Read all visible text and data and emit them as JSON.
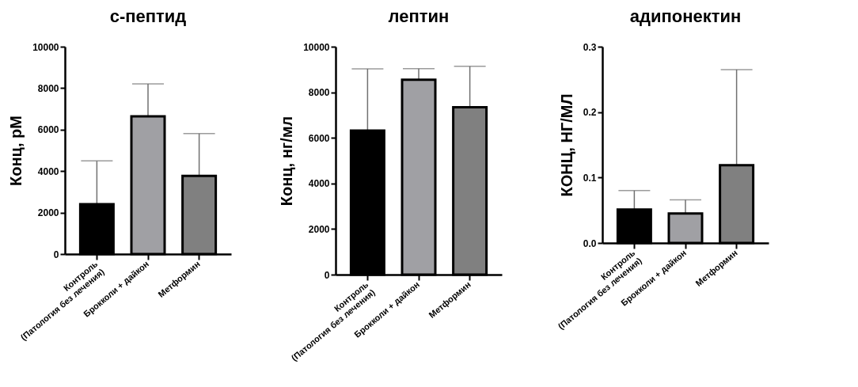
{
  "chart_data": [
    {
      "type": "bar",
      "title": "с-пептид",
      "ylabel": "Конц, рМ",
      "categories": [
        "Контроль\n(Патология без лечения)",
        "Брокколи + дайкон",
        "Метформин"
      ],
      "values": [
        2400,
        6640,
        3770
      ],
      "errors": [
        [
          2400,
          4490
        ],
        [
          6640,
          8210
        ],
        [
          3770,
          5810
        ]
      ],
      "colors": [
        "#000000",
        "#a0a0a4",
        "#808080"
      ],
      "ylim": [
        0,
        10000
      ],
      "yticks": [
        0,
        2000,
        4000,
        6000,
        8000,
        10000
      ],
      "grid": false
    },
    {
      "type": "bar",
      "title": "лептин",
      "ylabel": "Конц, нг/мл",
      "categories": [
        "Контроль\n(Патология без лечения)",
        "Брокколи + дайкон",
        "Метформин"
      ],
      "values": [
        6320,
        8550,
        7340
      ],
      "errors": [
        [
          6320,
          9030
        ],
        [
          8550,
          9040
        ],
        [
          7340,
          9140
        ]
      ],
      "colors": [
        "#000000",
        "#a0a0a4",
        "#808080"
      ],
      "ylim": [
        0,
        10000
      ],
      "yticks": [
        0,
        2000,
        4000,
        6000,
        8000,
        10000
      ],
      "grid": false
    },
    {
      "type": "bar",
      "title": "адипонектин",
      "ylabel": "КОНЦ, НГ/МЛ",
      "categories": [
        "Контроль\n(Патология без лечения)",
        "Брокколи + дайкон",
        "Метформин"
      ],
      "values": [
        0.051,
        0.045,
        0.119
      ],
      "errors": [
        [
          0.051,
          0.08
        ],
        [
          0.045,
          0.066
        ],
        [
          0.119,
          0.265
        ]
      ],
      "colors": [
        "#000000",
        "#a0a0a4",
        "#808080"
      ],
      "ylim": [
        0,
        0.3
      ],
      "yticks": [
        {
          "value": 0,
          "label": "0.0"
        },
        0.1,
        0.2,
        0.3
      ],
      "grid": false
    }
  ]
}
